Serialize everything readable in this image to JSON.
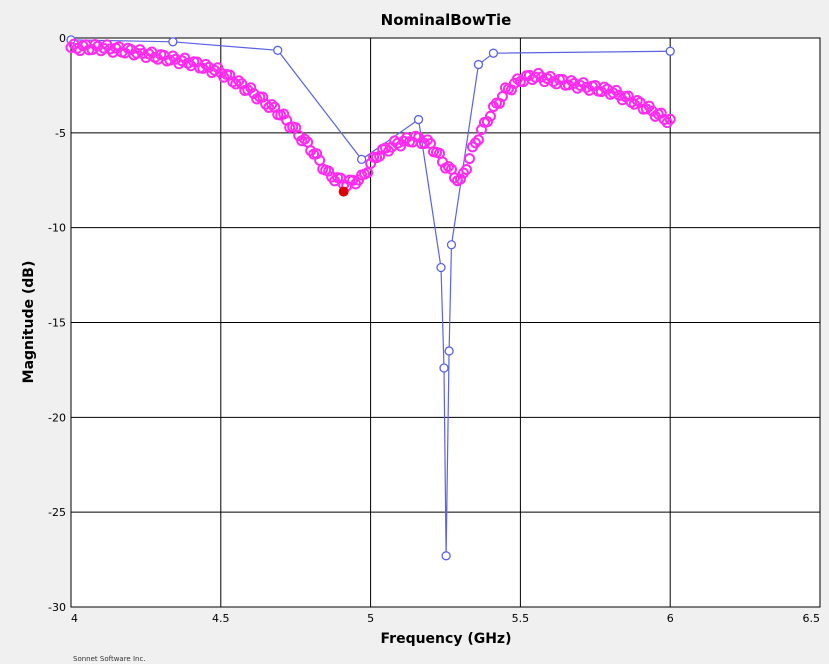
{
  "chart_data": {
    "type": "line",
    "title": "NominalBowTie",
    "xlabel": "Frequency (GHz)",
    "ylabel": "Magnitude (dB)",
    "xlim": [
      4,
      6.5
    ],
    "ylim": [
      -30,
      0
    ],
    "xticks": [
      "4",
      "4.5",
      "5",
      "5.5",
      "6",
      "6.5"
    ],
    "yticks": [
      "0",
      "-5",
      "-10",
      "-15",
      "-20",
      "-25",
      "-30"
    ],
    "grid": true,
    "series": [
      {
        "color": "#5b62e6",
        "style": "line with open circle markers",
        "x": [
          4.0,
          4.34,
          4.69,
          4.97,
          5.16,
          5.235,
          5.245,
          5.252,
          5.262,
          5.27,
          5.36,
          5.41,
          6.0
        ],
        "y": [
          -0.1,
          -0.2,
          -0.65,
          -6.4,
          -4.3,
          -12.1,
          -17.4,
          -27.3,
          -16.5,
          -10.9,
          -1.4,
          -0.8,
          -0.7
        ]
      },
      {
        "color": "#ff2cf0",
        "style": "open circle markers",
        "x": [
          4.0,
          4.1,
          4.2,
          4.3,
          4.4,
          4.5,
          4.6,
          4.7,
          4.8,
          4.86,
          4.92,
          4.97,
          5.02,
          5.08,
          5.15,
          5.2,
          5.25,
          5.3,
          5.35,
          5.4,
          5.45,
          5.5,
          5.55,
          5.6,
          5.7,
          5.8,
          5.9,
          6.0
        ],
        "y": [
          -0.5,
          -0.5,
          -0.7,
          -1.0,
          -1.3,
          -1.8,
          -2.8,
          -4.0,
          -5.8,
          -7.2,
          -7.7,
          -7.4,
          -6.2,
          -5.6,
          -5.3,
          -5.6,
          -6.7,
          -7.6,
          -5.5,
          -4.0,
          -2.8,
          -2.2,
          -2.0,
          -2.2,
          -2.5,
          -2.8,
          -3.5,
          -4.4
        ]
      }
    ],
    "marker_point": {
      "x": 4.91,
      "y": -8.1,
      "color": "#dd0000"
    },
    "footer": "Sonnet Software Inc."
  }
}
